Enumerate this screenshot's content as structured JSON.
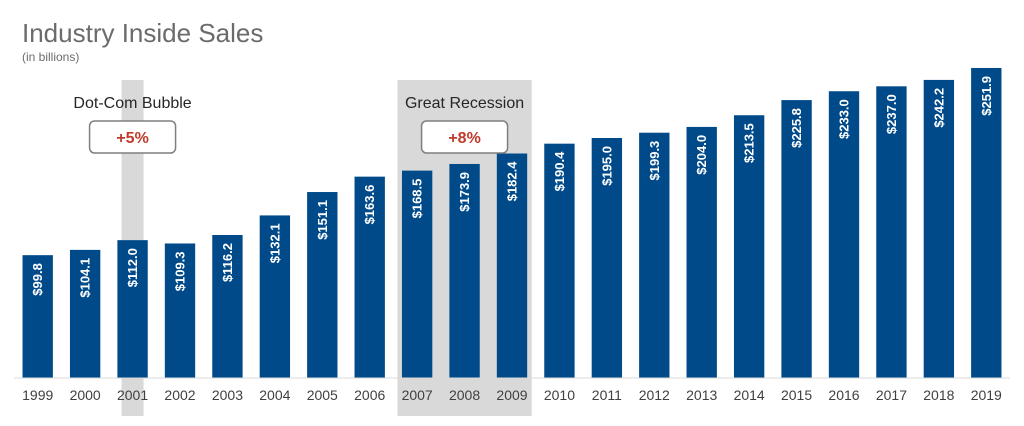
{
  "chart_data": {
    "type": "bar",
    "title": "Industry Inside Sales",
    "subtitle": "(in billions)",
    "categories": [
      "1999",
      "2000",
      "2001",
      "2002",
      "2003",
      "2004",
      "2005",
      "2006",
      "2007",
      "2008",
      "2009",
      "2010",
      "2011",
      "2012",
      "2013",
      "2014",
      "2015",
      "2016",
      "2017",
      "2018",
      "2019"
    ],
    "values": [
      99.8,
      104.1,
      112.0,
      109.3,
      116.2,
      132.1,
      151.1,
      163.6,
      168.5,
      173.9,
      182.4,
      190.4,
      195.0,
      199.3,
      204.0,
      213.5,
      225.8,
      233.0,
      237.0,
      242.2,
      251.9
    ],
    "data_labels": [
      "$99.8",
      "$104.1",
      "$112.0",
      "$109.3",
      "$116.2",
      "$132.1",
      "$151.1",
      "$163.6",
      "$168.5",
      "$173.9",
      "$182.4",
      "$190.4",
      "$195.0",
      "$199.3",
      "$204.0",
      "$213.5",
      "$225.8",
      "$233.0",
      "$237.0",
      "$242.2",
      "$251.9"
    ],
    "ylim": [
      0,
      260
    ],
    "grid": false,
    "colors": {
      "bar": "#004a8a",
      "highlight": "#d9d9d9",
      "pct_text": "#c0392b",
      "pct_border": "#7f7f7f"
    },
    "annotations": [
      {
        "label": "Dot-Com Bubble",
        "change": "+5%",
        "from": "2001",
        "to": "2001"
      },
      {
        "label": "Great Recession",
        "change": "+8%",
        "from": "2007",
        "to": "2009"
      }
    ]
  }
}
